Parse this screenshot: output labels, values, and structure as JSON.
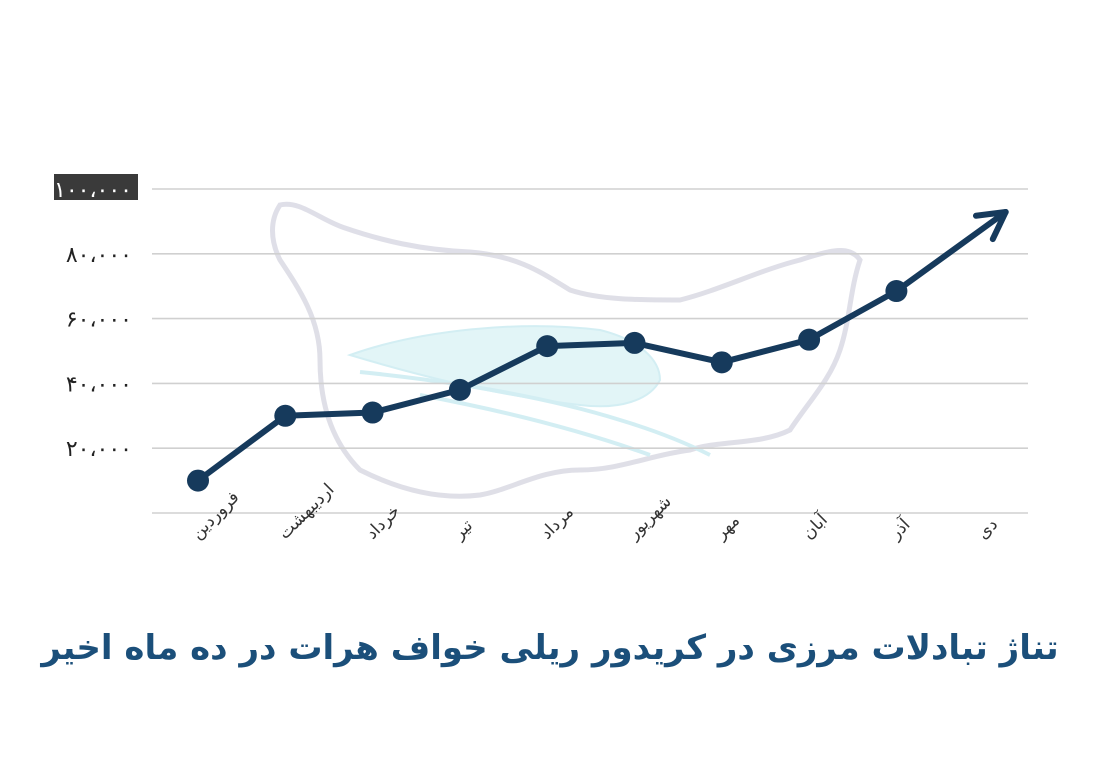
{
  "chart_data": {
    "type": "line",
    "title": "تناژ تبادلات مرزی در کریدور ریلی خواف هرات در ده ماه اخیر",
    "xlabel": "",
    "ylabel": "",
    "categories": [
      "فروردین",
      "اردیبهشت",
      "خرداد",
      "تیر",
      "مرداد",
      "شهریور",
      "مهر",
      "آبان",
      "آذر",
      "دی"
    ],
    "values": [
      10000,
      30000,
      31000,
      38000,
      51500,
      52500,
      46500,
      53500,
      68500,
      null
    ],
    "ytick_labels": [
      "۲۰،۰۰۰",
      "۴۰،۰۰۰",
      "۶۰،۰۰۰",
      "۸۰،۰۰۰",
      "۱۰۰،۰۰۰"
    ],
    "yticks": [
      20000,
      40000,
      60000,
      80000,
      100000
    ],
    "ylim": [
      0,
      100000
    ],
    "grid": true,
    "trend_arrow": true,
    "line_color": "#163a5c",
    "title_color": "#1b4f7a"
  }
}
